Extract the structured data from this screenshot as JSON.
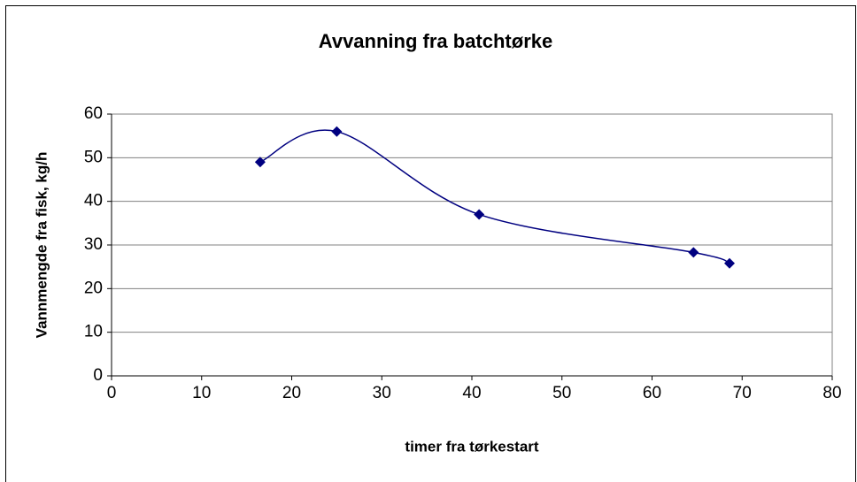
{
  "chart_data": {
    "type": "scatter",
    "title": "Avvanning fra batchtørke",
    "x_label": "timer fra tørkestart",
    "y_label": "Vannmengde fra fisk, kg/h",
    "series": [
      {
        "name": "Vannmengde",
        "color": "#000080",
        "x": [
          16.5,
          25,
          40.8,
          64.6,
          68.6
        ],
        "values": [
          49,
          56,
          37,
          28.3,
          25.8
        ]
      }
    ],
    "smooth": true,
    "grid": true,
    "xlim": [
      0,
      80
    ],
    "xticks": [
      0,
      10,
      20,
      30,
      40,
      50,
      60,
      70,
      80
    ],
    "ylim": [
      0,
      60
    ],
    "yticks": [
      0,
      10,
      20,
      30,
      40,
      50,
      60
    ]
  }
}
